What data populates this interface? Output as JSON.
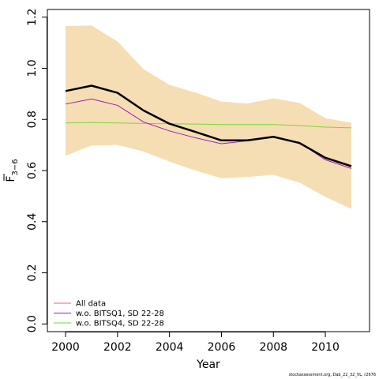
{
  "chart_data": {
    "type": "line",
    "xlabel": "Year",
    "ylabel_main": "F",
    "ylabel_sub": "3−6",
    "xlim": [
      1999.3,
      2011.7
    ],
    "ylim": [
      -0.03,
      1.23
    ],
    "x_ticks": [
      2000,
      2002,
      2004,
      2006,
      2008,
      2010
    ],
    "y_ticks": [
      0.0,
      0.2,
      0.4,
      0.6,
      0.8,
      1.0,
      1.2
    ],
    "y_tick_labels": [
      "0.0",
      "0.2",
      "0.4",
      "0.6",
      "0.8",
      "1.0",
      "1.2"
    ],
    "x": [
      2000,
      2001,
      2002,
      2003,
      2004,
      2005,
      2006,
      2007,
      2008,
      2009,
      2010,
      2011
    ],
    "band": {
      "color": "#f5deb3",
      "upper": [
        1.165,
        1.167,
        1.105,
        0.997,
        0.935,
        0.905,
        0.87,
        0.862,
        0.882,
        0.865,
        0.805,
        0.787
      ],
      "lower": [
        0.658,
        0.698,
        0.7,
        0.675,
        0.635,
        0.6,
        0.57,
        0.575,
        0.583,
        0.553,
        0.497,
        0.45
      ]
    },
    "series": [
      {
        "key": "main",
        "color": "#000000",
        "values": [
          0.911,
          0.932,
          0.904,
          0.835,
          0.783,
          0.751,
          0.718,
          0.718,
          0.732,
          0.708,
          0.65,
          0.617
        ]
      },
      {
        "key": "alldata",
        "color": "#e8638a",
        "values": [
          0.911,
          0.932,
          0.904,
          0.835,
          0.783,
          0.751,
          0.718,
          0.718,
          0.732,
          0.708,
          0.65,
          0.617
        ]
      },
      {
        "key": "bitsq1",
        "color": "#9b1fb5",
        "values": [
          0.86,
          0.88,
          0.855,
          0.79,
          0.755,
          0.728,
          0.705,
          0.716,
          0.73,
          0.71,
          0.642,
          0.608
        ]
      },
      {
        "key": "bitsq4",
        "color": "#7cd63a",
        "values": [
          0.786,
          0.788,
          0.786,
          0.784,
          0.783,
          0.782,
          0.78,
          0.78,
          0.78,
          0.776,
          0.77,
          0.767
        ]
      }
    ],
    "legend": {
      "placement": "bottom-left",
      "entries": [
        {
          "label": "All data",
          "color": "#e8638a"
        },
        {
          "label": "w.o. BITSQ1, SD 22-28",
          "color": "#9b1fb5"
        },
        {
          "label": "w.o. BITSQ4, SD 22-28",
          "color": "#7cd63a"
        }
      ]
    }
  },
  "footer": "stockassessment.org, Dab_22_32_VL, r2676"
}
